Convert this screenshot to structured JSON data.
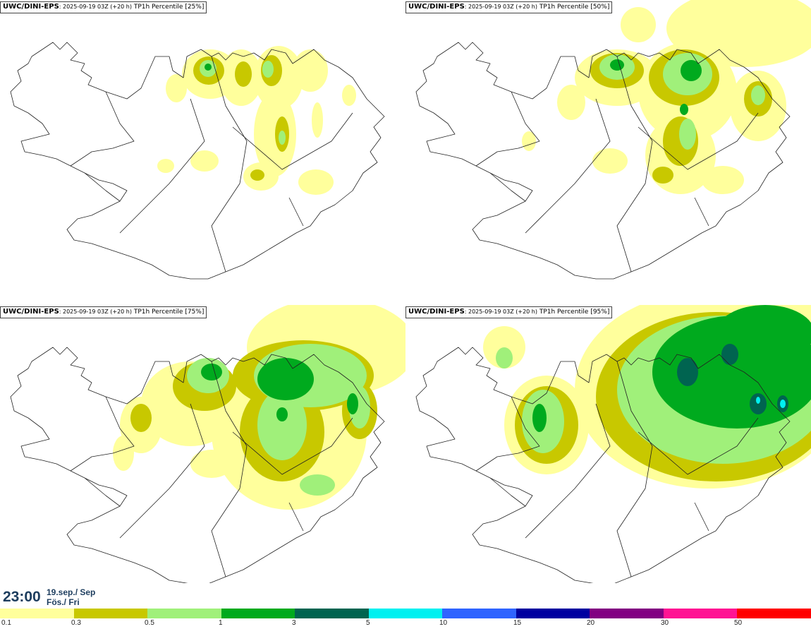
{
  "panels": [
    {
      "model": "UWC/DINI-EPS",
      "run": ": 2025-09-19 03Z (+20 h)",
      "field": " TP1h Percentile [25%]",
      "percentile": 25
    },
    {
      "model": "UWC/DINI-EPS",
      "run": ": 2025-09-19 03Z (+20 h)",
      "field": " TP1h Percentile [50%]",
      "percentile": 50
    },
    {
      "model": "UWC/DINI-EPS",
      "run": ": 2025-09-19 03Z (+20 h)",
      "field": " TP1h Percentile [75%]",
      "percentile": 75
    },
    {
      "model": "UWC/DINI-EPS",
      "run": ": 2025-09-19 03Z (+20 h)",
      "field": " TP1h Percentile [95%]",
      "percentile": 95
    }
  ],
  "valid": {
    "time": "23:00",
    "date_line1": "19.sep./ Sep",
    "date_line2": "Fös./ Fri"
  },
  "legend": {
    "colors": [
      "#ffff9c",
      "#c8c800",
      "#a0f07a",
      "#00aa1e",
      "#006450",
      "#00f0f0",
      "#2f64ff",
      "#0000a0",
      "#820082",
      "#ff1493",
      "#ff0000"
    ],
    "labels": [
      "0.1",
      "0.3",
      "0.5",
      "1",
      "3",
      "5",
      "10",
      "15",
      "20",
      "30",
      "50"
    ]
  }
}
